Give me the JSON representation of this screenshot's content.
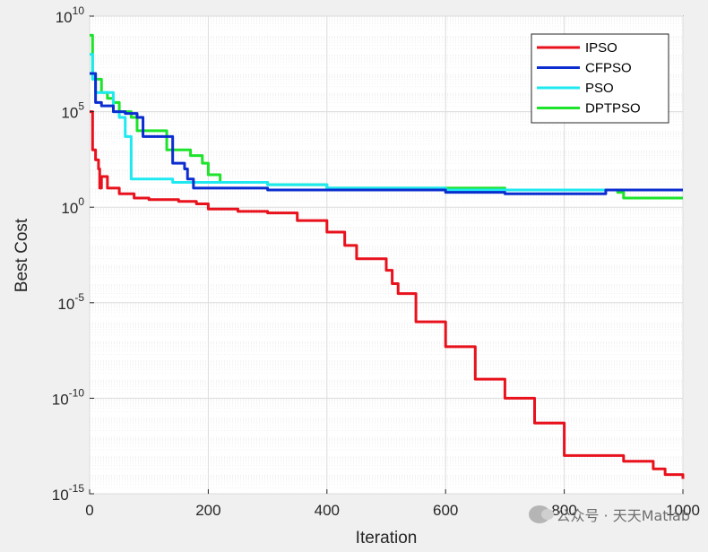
{
  "chart_data": {
    "type": "line",
    "title": "",
    "xlabel": "Iteration",
    "ylabel": "Best Cost",
    "xlim": [
      0,
      1000
    ],
    "ylim_log10": [
      -15,
      10
    ],
    "yscale": "log",
    "x_ticks": [
      "0",
      "200",
      "400",
      "600",
      "800",
      "1000"
    ],
    "y_ticks": [
      {
        "base": "10",
        "exp": "10"
      },
      {
        "base": "10",
        "exp": "5"
      },
      {
        "base": "10",
        "exp": "0"
      },
      {
        "base": "10",
        "exp": "-5"
      },
      {
        "base": "10",
        "exp": "-10"
      },
      {
        "base": "10",
        "exp": "-15"
      }
    ],
    "grid": true,
    "legend_position": "top-right",
    "series": [
      {
        "name": "IPSO",
        "color": "#e8111c",
        "x": [
          0,
          5,
          10,
          15,
          17,
          20,
          30,
          50,
          75,
          100,
          150,
          180,
          200,
          250,
          300,
          350,
          400,
          430,
          450,
          500,
          510,
          520,
          550,
          600,
          650,
          700,
          750,
          800,
          850,
          900,
          950,
          970,
          1000
        ],
        "y": [
          "1e5",
          "1e3",
          "3e2",
          "1e2",
          "1e1",
          "4e1",
          "1e1",
          "5",
          "3",
          "2.5",
          "2",
          "1.5",
          "0.8",
          "0.6",
          "0.5",
          "0.2",
          "0.05",
          "0.01",
          "0.002",
          "5e-4",
          "1e-4",
          "3e-5",
          "1e-6",
          "5e-8",
          "1e-9",
          "1e-10",
          "5e-12",
          "1e-13",
          "1e-13",
          "5e-14",
          "2e-14",
          "1e-14",
          "6e-15"
        ]
      },
      {
        "name": "CFPSO",
        "color": "#0b2dd0",
        "x": [
          0,
          10,
          20,
          40,
          60,
          80,
          90,
          110,
          140,
          160,
          165,
          175,
          180,
          300,
          400,
          500,
          600,
          700,
          800,
          860,
          870,
          1000
        ],
        "y": [
          "1e7",
          "3e5",
          "2e5",
          "1e5",
          "8e4",
          "5e4",
          "5e3",
          "5e3",
          "2e2",
          "1e2",
          "30",
          "10",
          "10",
          "8",
          "8",
          "8",
          "6",
          "5",
          "5",
          "5",
          "8",
          "8"
        ]
      },
      {
        "name": "PSO",
        "color": "#1fe9f0",
        "x": [
          0,
          5,
          10,
          30,
          40,
          50,
          60,
          70,
          80,
          100,
          140,
          180,
          200,
          300,
          400,
          500,
          600,
          700,
          800,
          900,
          1000
        ],
        "y": [
          "1e8",
          "5e6",
          "1e6",
          "1e6",
          "1e5",
          "5e4",
          "5e3",
          "30",
          "30",
          "30",
          "20",
          "20",
          "20",
          "15",
          "10",
          "10",
          "8",
          "8",
          "8",
          "8",
          "8"
        ]
      },
      {
        "name": "DPTPSO",
        "color": "#1de32b",
        "x": [
          0,
          5,
          10,
          20,
          30,
          40,
          50,
          60,
          70,
          80,
          90,
          100,
          120,
          130,
          150,
          170,
          190,
          200,
          220,
          300,
          400,
          500,
          600,
          700,
          800,
          890,
          900,
          1000
        ],
        "y": [
          "1e9",
          "1e7",
          "5e6",
          "1e6",
          "5e5",
          "3e5",
          "1e5",
          "1e5",
          "5e4",
          "1e4",
          "1e4",
          "1e4",
          "1e4",
          "1e3",
          "1e3",
          "500",
          "200",
          "50",
          "20",
          "15",
          "10",
          "10",
          "10",
          "8",
          "8",
          "6",
          "3",
          "3"
        ]
      }
    ]
  },
  "watermark": {
    "text": "公众号 · 天天Matlab"
  }
}
